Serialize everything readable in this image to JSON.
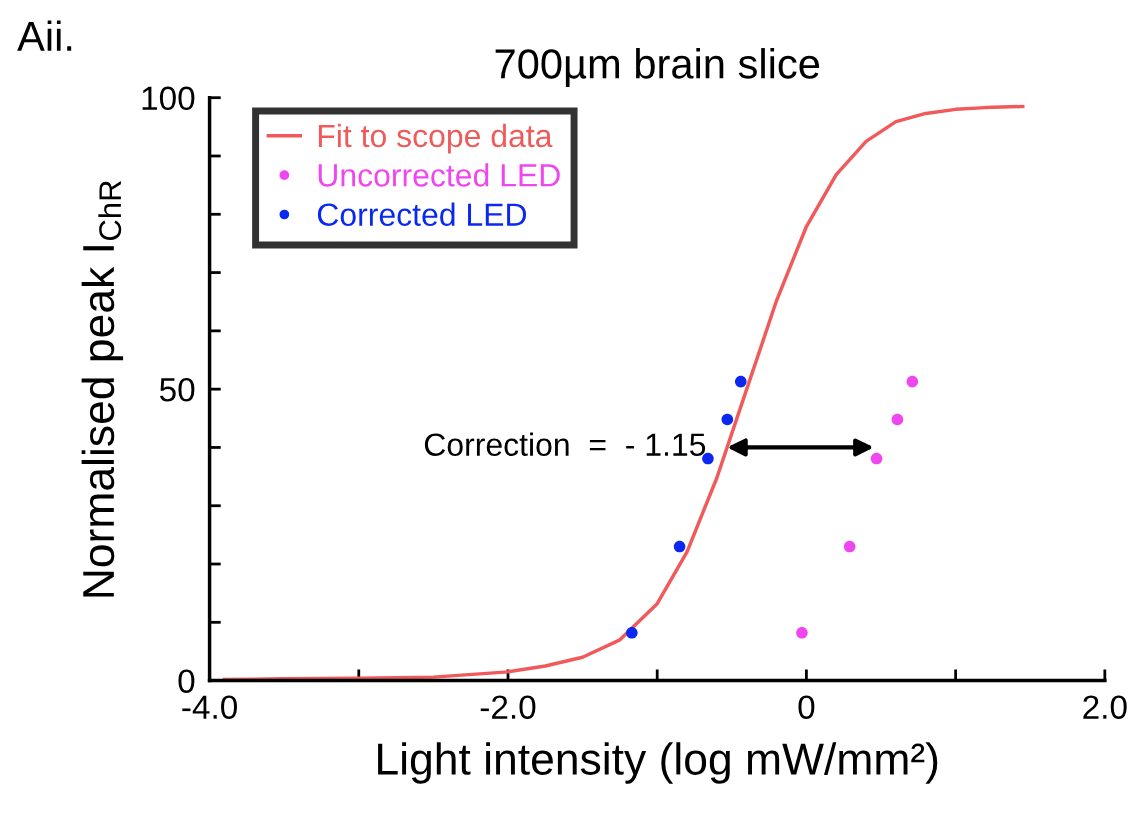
{
  "chart_data": {
    "type": "scatter",
    "title": "700µm brain slice",
    "xlabel": "Light intensity (log mW/mm²)",
    "ylabel": "Normalised peak I$_{ChR}$",
    "annotations": [
      "Aii.",
      {
        "text": "Correction  =  - 1.15",
        "x": -0.55,
        "y": 40
      }
    ],
    "xlim": [
      -4.0,
      2.0
    ],
    "xticks": [
      {
        "value": -4,
        "label": "-4.0"
      },
      {
        "value": -3,
        "label": null
      },
      {
        "value": -2,
        "label": "-2.0"
      },
      {
        "value": -1,
        "label": null
      },
      0,
      {
        "value": 1,
        "label": null
      },
      {
        "value": 2,
        "label": "2.0"
      }
    ],
    "ylim": [
      0,
      100
    ],
    "yticks": [
      0,
      {
        "value": 10,
        "label": null
      },
      {
        "value": 20,
        "label": null
      },
      {
        "value": 30,
        "label": null
      },
      {
        "value": 40,
        "label": null
      },
      50,
      {
        "value": 60,
        "label": null
      },
      {
        "value": 70,
        "label": null
      },
      {
        "value": 80,
        "label": null
      },
      {
        "value": 90,
        "label": null
      },
      100
    ],
    "grid": false,
    "legend": "top left",
    "series": [
      {
        "name": "Fit to scope data",
        "type": "line",
        "marker": "none",
        "color": "#f05a5a",
        "x": [
          -3.9,
          -3.5,
          -3.0,
          -2.5,
          -2.0,
          -1.75,
          -1.5,
          -1.25,
          -1.0,
          -0.8,
          -0.6,
          -0.4,
          -0.2,
          0,
          0.2,
          0.4,
          0.6,
          0.8,
          1.0,
          1.2,
          1.45
        ],
        "values": [
          0.2,
          0.3,
          0.4,
          0.6,
          1.5,
          2.5,
          4,
          7,
          13.2,
          22.1,
          34.8,
          50,
          65.2,
          77.9,
          86.8,
          92.5,
          95.9,
          97.3,
          98,
          98.3,
          98.5
        ]
      },
      {
        "name": "Uncorrected LED",
        "marker": "circle",
        "color": "#f046f0",
        "x": [
          -0.03,
          0.29,
          0.47,
          0.61,
          0.71
        ],
        "values": [
          8.2,
          23.0,
          38.1,
          44.8,
          51.3
        ]
      },
      {
        "name": "Corrected LED",
        "marker": "circle",
        "color": "#0a28f0",
        "x": [
          -1.17,
          -0.85,
          -0.66,
          -0.53,
          -0.44
        ],
        "values": [
          8.2,
          23.0,
          38.1,
          44.8,
          51.3
        ]
      }
    ]
  }
}
